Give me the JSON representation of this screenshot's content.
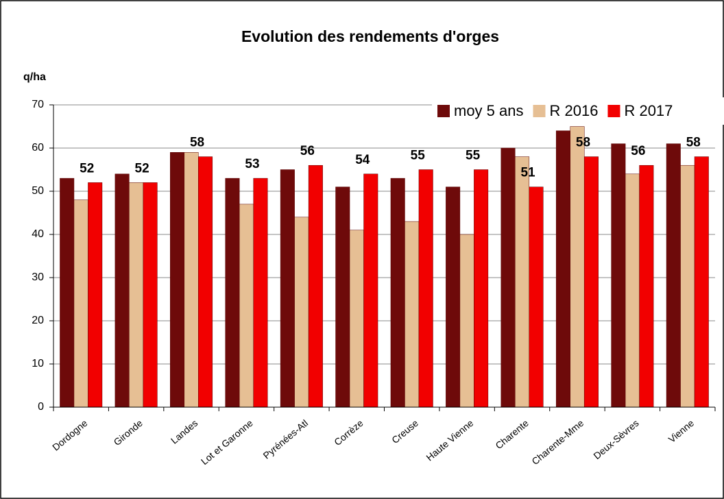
{
  "chart_data": {
    "type": "bar",
    "title": "Evolution des rendements d'orges",
    "y_label": "q/ha",
    "categories": [
      "Dordogne",
      "Gironde",
      "Landes",
      "Lot et Garonne",
      "Pyrénées-Atl",
      "Corrèze",
      "Creuse",
      "Haute Vienne",
      "Charente",
      "Charente-Mme",
      "Deux-Sèvres",
      "Vienne"
    ],
    "series": [
      {
        "name": "moy 5 ans",
        "color": "#6e0a0a",
        "values": [
          53,
          54,
          59,
          53,
          55,
          51,
          53,
          51,
          60,
          64,
          61,
          61
        ]
      },
      {
        "name": "R 2016",
        "color": "#e6bf94",
        "values": [
          48,
          52,
          59,
          47,
          44,
          41,
          43,
          40,
          58,
          65,
          54,
          56
        ]
      },
      {
        "name": "R 2017",
        "color": "#f20000",
        "values": [
          52,
          52,
          58,
          53,
          56,
          54,
          55,
          55,
          51,
          58,
          56,
          58
        ],
        "data_labels": true
      }
    ],
    "ylim": [
      0,
      70
    ],
    "yticks": [
      0,
      10,
      20,
      30,
      40,
      50,
      60,
      70
    ],
    "grid": true,
    "legend": "top-right"
  }
}
